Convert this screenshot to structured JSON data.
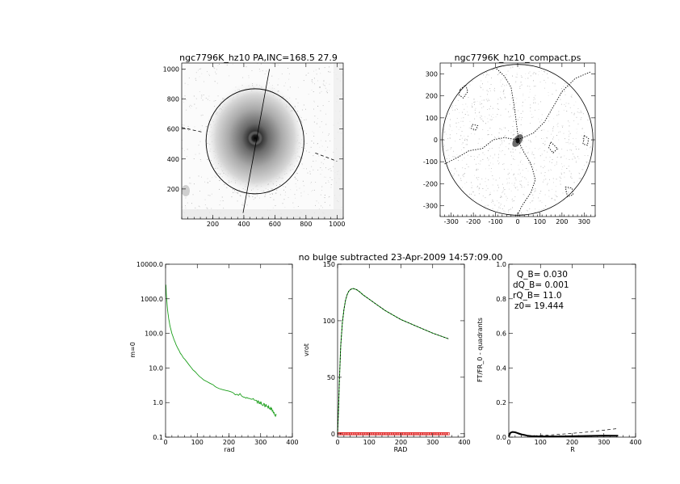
{
  "header": {
    "caption": "no bulge subtracted   23-Apr-2009 14:57:09.00"
  },
  "colors": {
    "green_curve": "#1a9e1a",
    "red_markers": "#e02020",
    "ink": "#000000"
  },
  "chart_data": [
    {
      "id": "image_panel",
      "type": "heatmap",
      "title": "ngc7796K_hz10 PA,INC=168.5 27.9",
      "xlim": [
        0,
        1040
      ],
      "ylim": [
        0,
        1040
      ],
      "xticks": [
        "200",
        "400",
        "600",
        "800",
        "1000"
      ],
      "yticks": [
        "200",
        "400",
        "600",
        "800",
        "1000"
      ],
      "xtick_values": [
        200,
        400,
        600,
        800,
        1000
      ],
      "ytick_values": [
        200,
        400,
        600,
        800,
        1000
      ],
      "center": [
        472,
        518
      ],
      "ellipse_semi_axes": [
        315,
        350
      ],
      "major_axis_line": [
        [
          395,
          40
        ],
        [
          565,
          1000
        ]
      ],
      "minor_axis_dashed": [
        [
          [
            0,
            610
          ],
          [
            130,
            580
          ]
        ],
        [
          [
            860,
            440
          ],
          [
            1000,
            385
          ]
        ]
      ]
    },
    {
      "id": "compact_panel",
      "type": "heatmap",
      "title": "ngc7796K_hz10_compact.ps",
      "xlim": [
        -350,
        350
      ],
      "ylim": [
        -350,
        350
      ],
      "xticks": [
        "-300",
        "-200",
        "-100",
        "0",
        "100",
        "200",
        "300"
      ],
      "yticks": [
        "-300",
        "-200",
        "-100",
        "0",
        "100",
        "200",
        "300"
      ],
      "xtick_values": [
        -300,
        -200,
        -100,
        0,
        100,
        200,
        300
      ],
      "ytick_values": [
        -300,
        -200,
        -100,
        0,
        100,
        200,
        300
      ],
      "circle_radius": 340,
      "dotted_contours": [
        [
          [
            -95,
            325
          ],
          [
            -60,
            290
          ],
          [
            -30,
            240
          ],
          [
            -20,
            180
          ],
          [
            -10,
            110
          ],
          [
            0,
            30
          ],
          [
            10,
            -20
          ],
          [
            30,
            -60
          ],
          [
            60,
            -110
          ],
          [
            80,
            -180
          ],
          [
            60,
            -240
          ],
          [
            20,
            -300
          ],
          [
            0,
            -340
          ]
        ],
        [
          [
            -330,
            -110
          ],
          [
            -270,
            -80
          ],
          [
            -220,
            -50
          ],
          [
            -160,
            -40
          ],
          [
            -110,
            0
          ],
          [
            -60,
            10
          ],
          [
            0,
            0
          ]
        ],
        [
          [
            0,
            0
          ],
          [
            70,
            30
          ],
          [
            120,
            80
          ],
          [
            160,
            150
          ],
          [
            200,
            220
          ],
          [
            260,
            280
          ],
          [
            330,
            310
          ]
        ],
        [
          [
            -260,
            230
          ],
          [
            -235,
            250
          ],
          [
            -225,
            220
          ],
          [
            -245,
            190
          ],
          [
            -265,
            205
          ],
          [
            -260,
            230
          ]
        ],
        [
          [
            -205,
            70
          ],
          [
            -180,
            65
          ],
          [
            -190,
            45
          ],
          [
            -210,
            52
          ],
          [
            -205,
            70
          ]
        ],
        [
          [
            300,
            20
          ],
          [
            320,
            5
          ],
          [
            315,
            -25
          ],
          [
            295,
            -20
          ],
          [
            300,
            20
          ]
        ],
        [
          [
            215,
            -215
          ],
          [
            245,
            -220
          ],
          [
            250,
            -250
          ],
          [
            225,
            -260
          ],
          [
            215,
            -215
          ]
        ],
        [
          [
            150,
            -10
          ],
          [
            180,
            -40
          ],
          [
            160,
            -60
          ],
          [
            140,
            -35
          ],
          [
            150,
            -10
          ]
        ]
      ]
    },
    {
      "id": "m0_profile",
      "type": "line",
      "xlabel": "rad",
      "ylabel": "m=0",
      "xlim": [
        0,
        400
      ],
      "ylim": [
        0.1,
        10000
      ],
      "yscale": "log",
      "xticks": [
        "0",
        "100",
        "200",
        "300",
        "400"
      ],
      "yticks": [
        "0.1",
        "1.0",
        "10.0",
        "100.0",
        "1000.0",
        "10000.0"
      ],
      "xtick_values": [
        0,
        100,
        200,
        300,
        400
      ],
      "ytick_values": [
        0.1,
        1,
        10,
        100,
        1000,
        10000
      ],
      "series": [
        {
          "color": "#1a9e1a",
          "x": [
            1,
            3,
            6,
            10,
            15,
            20,
            30,
            40,
            50,
            60,
            80,
            100,
            120,
            150,
            170,
            200,
            220,
            250,
            270,
            290,
            300,
            310,
            320,
            330,
            340,
            345,
            350
          ],
          "values": [
            2600,
            1100,
            500,
            260,
            150,
            100,
            55,
            35,
            24,
            18,
            10.5,
            6.5,
            4.6,
            3.2,
            2.5,
            2.1,
            1.8,
            1.5,
            1.3,
            1.05,
            0.95,
            0.85,
            0.8,
            0.7,
            0.55,
            0.42,
            0.45
          ]
        }
      ]
    },
    {
      "id": "rotation_curve",
      "type": "line",
      "xlabel": "RAD",
      "ylabel": "vrot",
      "xlim": [
        0,
        400
      ],
      "ylim": [
        -3,
        150
      ],
      "xticks": [
        "0",
        "100",
        "200",
        "300",
        "400"
      ],
      "yticks": [
        "0",
        "50",
        "100",
        "150"
      ],
      "xtick_values": [
        0,
        100,
        200,
        300,
        400
      ],
      "ytick_values": [
        0,
        50,
        100,
        150
      ],
      "series": [
        {
          "color": "#1a9e1a",
          "x": [
            0,
            3,
            6,
            10,
            15,
            20,
            25,
            30,
            35,
            40,
            45,
            50,
            60,
            70,
            80,
            100,
            120,
            150,
            200,
            250,
            300,
            350
          ],
          "values": [
            0,
            22,
            50,
            78,
            98,
            110,
            118,
            123,
            126,
            127.5,
            128.3,
            128.5,
            127.5,
            125.5,
            123,
            119,
            115,
            109,
            101,
            95,
            89,
            84
          ]
        },
        {
          "color": "#000000",
          "dashed": true,
          "x": [
            0,
            3,
            6,
            10,
            15,
            20,
            25,
            30,
            35,
            40,
            45,
            50,
            60,
            70,
            80,
            100,
            120,
            150,
            200,
            250,
            300,
            350
          ],
          "values": [
            0,
            22,
            50,
            78,
            98,
            110,
            118,
            123,
            126,
            127.5,
            128.3,
            128.5,
            127.5,
            125.5,
            123,
            119,
            115,
            109,
            101,
            95,
            89,
            84
          ]
        },
        {
          "color": "#e02020",
          "markers": true,
          "x_start": 5,
          "x_end": 350,
          "x_step": 4,
          "value": 0
        }
      ]
    },
    {
      "id": "ft_quadrants",
      "type": "line",
      "xlabel": "R",
      "ylabel": "FT/FR_0 - quadrants",
      "xlim": [
        0,
        400
      ],
      "ylim": [
        0,
        1
      ],
      "xticks": [
        "0",
        "100",
        "200",
        "300",
        "400"
      ],
      "yticks": [
        "0.0",
        "0.2",
        "0.4",
        "0.6",
        "0.8",
        "1.0"
      ],
      "xtick_values": [
        0,
        100,
        200,
        300,
        400
      ],
      "ytick_values": [
        0,
        0.2,
        0.4,
        0.6,
        0.8,
        1.0
      ],
      "annotations": [
        "Q_B=  0.030",
        "dQ_B=  0.001",
        "rQ_B=   11.0",
        "z0= 19.444"
      ],
      "series": [
        {
          "color": "#000000",
          "width": 2,
          "x": [
            0,
            5,
            11,
            20,
            30,
            40,
            50,
            60,
            70,
            80,
            100,
            150,
            200,
            250,
            300,
            345
          ],
          "values": [
            0.005,
            0.025,
            0.03,
            0.028,
            0.022,
            0.016,
            0.012,
            0.008,
            0.006,
            0.005,
            0.004,
            0.004,
            0.005,
            0.007,
            0.009,
            0.008
          ]
        },
        {
          "color": "#000000",
          "dashed": true,
          "x": [
            0,
            5,
            11,
            20,
            30,
            40,
            60,
            80,
            100,
            150,
            200,
            250,
            300,
            345
          ],
          "values": [
            0.005,
            0.025,
            0.03,
            0.025,
            0.018,
            0.012,
            0.009,
            0.008,
            0.01,
            0.015,
            0.022,
            0.03,
            0.04,
            0.05
          ]
        }
      ]
    }
  ]
}
